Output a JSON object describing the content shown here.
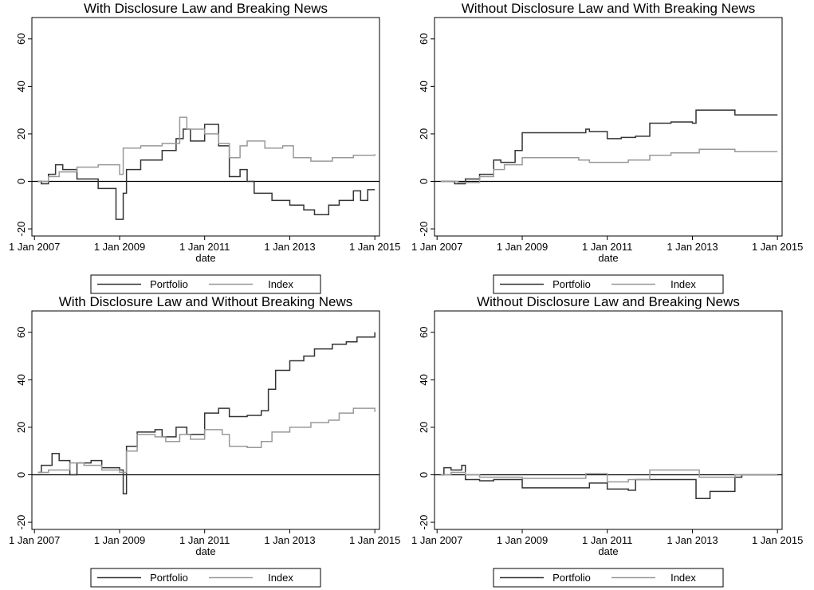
{
  "chart_data": [
    {
      "type": "line",
      "step": true,
      "title": "With Disclosure Law and Breaking News",
      "xlabel": "date",
      "xlim": [
        "2006-12-10",
        "2015-02-10"
      ],
      "ylim": [
        -23,
        69
      ],
      "yticks": [
        -20,
        0,
        20,
        40,
        60
      ],
      "reference_line": 0,
      "legend": "bottom",
      "xticks": [
        {
          "value": "2007-01-01",
          "label": "1 Jan 2007"
        },
        {
          "value": "2009-01-01",
          "label": "1 Jan 2009"
        },
        {
          "value": "2011-01-01",
          "label": "1 Jan 2011"
        },
        {
          "value": "2013-01-01",
          "label": "1 Jan 2013"
        },
        {
          "value": "2015-01-01",
          "label": "1 Jan 2015"
        }
      ],
      "series": [
        {
          "name": "Portfolio",
          "color": "#333333",
          "x": [
            "2007-02-01",
            "2007-03-01",
            "2007-05-01",
            "2007-07-01",
            "2007-09-01",
            "2008-01-01",
            "2008-07-01",
            "2008-12-01",
            "2009-02-01",
            "2009-03-01",
            "2009-07-01",
            "2010-01-01",
            "2010-05-01",
            "2010-07-01",
            "2010-09-01",
            "2011-01-01",
            "2011-05-01",
            "2011-08-01",
            "2011-11-01",
            "2012-01-01",
            "2012-03-01",
            "2012-08-01",
            "2013-01-01",
            "2013-05-01",
            "2013-08-01",
            "2013-12-01",
            "2014-03-01",
            "2014-07-01",
            "2014-09-01",
            "2014-11-01",
            "2015-01-01"
          ],
          "values": [
            0,
            -1,
            3,
            7,
            5,
            1,
            -3,
            -16,
            -5,
            5,
            9,
            13,
            18,
            22,
            17,
            24,
            15,
            2,
            5,
            0,
            -5,
            -8,
            -10,
            -12,
            -14,
            -10,
            -8,
            -4,
            -8,
            -3.5,
            -3.5
          ]
        },
        {
          "name": "Index",
          "color": "#999999",
          "x": [
            "2007-02-01",
            "2007-05-01",
            "2007-08-01",
            "2008-01-01",
            "2008-07-01",
            "2009-01-01",
            "2009-02-01",
            "2009-07-01",
            "2010-01-01",
            "2010-06-01",
            "2010-08-01",
            "2011-01-01",
            "2011-05-01",
            "2011-08-01",
            "2011-11-01",
            "2012-01-01",
            "2012-06-01",
            "2012-11-01",
            "2013-02-01",
            "2013-07-01",
            "2014-01-01",
            "2014-07-01",
            "2015-01-01"
          ],
          "values": [
            0,
            2,
            4,
            6,
            7,
            3,
            14,
            15,
            16,
            27,
            22,
            20,
            16,
            10,
            15,
            17,
            14,
            15,
            10,
            8.5,
            10,
            11,
            11.5
          ]
        }
      ]
    },
    {
      "type": "line",
      "step": true,
      "title": "Without Disclosure Law and With Breaking News",
      "xlabel": "date",
      "xlim": [
        "2006-12-10",
        "2015-02-10"
      ],
      "ylim": [
        -23,
        69
      ],
      "yticks": [
        -20,
        0,
        20,
        40,
        60
      ],
      "reference_line": 0,
      "legend": "bottom",
      "xticks": [
        {
          "value": "2007-01-01",
          "label": "1 Jan 2007"
        },
        {
          "value": "2009-01-01",
          "label": "1 Jan 2009"
        },
        {
          "value": "2011-01-01",
          "label": "1 Jan 2011"
        },
        {
          "value": "2013-01-01",
          "label": "1 Jan 2013"
        },
        {
          "value": "2015-01-01",
          "label": "1 Jan 2015"
        }
      ],
      "series": [
        {
          "name": "Portfolio",
          "color": "#333333",
          "x": [
            "2007-02-01",
            "2007-06-01",
            "2007-09-01",
            "2008-01-01",
            "2008-05-01",
            "2008-07-01",
            "2008-11-01",
            "2009-01-01",
            "2010-07-01",
            "2010-08-01",
            "2011-01-01",
            "2011-05-01",
            "2011-09-01",
            "2012-01-01",
            "2012-07-01",
            "2013-01-01",
            "2013-02-01",
            "2013-09-01",
            "2014-01-01",
            "2015-01-01"
          ],
          "values": [
            0,
            -1,
            1,
            3,
            9,
            8,
            13,
            20.5,
            22,
            21,
            18,
            18.5,
            19,
            24.5,
            25,
            24.5,
            30,
            30,
            28,
            28
          ]
        },
        {
          "name": "Index",
          "color": "#999999",
          "x": [
            "2007-02-01",
            "2007-07-01",
            "2008-01-01",
            "2008-05-01",
            "2008-08-01",
            "2009-01-01",
            "2009-07-01",
            "2010-05-01",
            "2010-08-01",
            "2011-01-01",
            "2011-07-01",
            "2012-01-01",
            "2012-07-01",
            "2012-12-01",
            "2013-03-01",
            "2014-01-01",
            "2015-01-01"
          ],
          "values": [
            0,
            -0.5,
            2,
            5,
            7,
            10,
            10,
            9,
            8,
            8,
            9,
            11,
            12,
            12,
            13.5,
            12.5,
            12.5
          ]
        }
      ]
    },
    {
      "type": "line",
      "step": true,
      "title": "With Disclosure Law and Without Breaking News",
      "xlabel": "date",
      "xlim": [
        "2006-12-10",
        "2015-02-10"
      ],
      "ylim": [
        -23,
        69
      ],
      "yticks": [
        -20,
        0,
        20,
        40,
        60
      ],
      "reference_line": 0,
      "legend": "bottom",
      "xticks": [
        {
          "value": "2007-01-01",
          "label": "1 Jan 2007"
        },
        {
          "value": "2009-01-01",
          "label": "1 Jan 2009"
        },
        {
          "value": "2011-01-01",
          "label": "1 Jan 2011"
        },
        {
          "value": "2013-01-01",
          "label": "1 Jan 2013"
        },
        {
          "value": "2015-01-01",
          "label": "1 Jan 2015"
        }
      ],
      "series": [
        {
          "name": "Portfolio",
          "color": "#333333",
          "x": [
            "2007-02-01",
            "2007-03-01",
            "2007-06-01",
            "2007-08-01",
            "2007-11-01",
            "2008-01-01",
            "2008-05-01",
            "2008-08-01",
            "2009-01-01",
            "2009-02-01",
            "2009-03-01",
            "2009-06-01",
            "2009-11-01",
            "2010-01-01",
            "2010-05-01",
            "2010-08-01",
            "2011-01-01",
            "2011-05-01",
            "2011-08-01",
            "2012-01-01",
            "2012-05-01",
            "2012-07-01",
            "2012-09-01",
            "2013-01-01",
            "2013-05-01",
            "2013-08-01",
            "2014-01-01",
            "2014-05-01",
            "2014-08-01",
            "2015-01-01"
          ],
          "values": [
            1,
            4,
            9,
            6,
            0,
            5,
            6,
            3,
            2,
            -8,
            12,
            18,
            19,
            16,
            20,
            17,
            26,
            28,
            24.5,
            25,
            27,
            36,
            44,
            48,
            50,
            53,
            55,
            56,
            58,
            60
          ]
        },
        {
          "name": "Index",
          "color": "#999999",
          "x": [
            "2007-02-01",
            "2007-05-01",
            "2007-08-01",
            "2007-11-01",
            "2008-03-01",
            "2008-08-01",
            "2009-01-01",
            "2009-03-01",
            "2009-06-01",
            "2009-11-01",
            "2010-02-01",
            "2010-06-01",
            "2010-09-01",
            "2011-01-01",
            "2011-06-01",
            "2011-08-01",
            "2012-01-01",
            "2012-05-01",
            "2012-08-01",
            "2013-01-01",
            "2013-07-01",
            "2013-12-01",
            "2014-03-01",
            "2014-07-01",
            "2014-11-01",
            "2015-01-01"
          ],
          "values": [
            1,
            2,
            2,
            5,
            4,
            2,
            1,
            10,
            17,
            16,
            14,
            17,
            15,
            19,
            17,
            12,
            11.5,
            14,
            18,
            20,
            22,
            23,
            26,
            28,
            28,
            26.5
          ]
        }
      ]
    },
    {
      "type": "line",
      "step": true,
      "title": "Without Disclosure Law and Breaking News",
      "xlabel": "date",
      "xlim": [
        "2006-12-10",
        "2015-02-10"
      ],
      "ylim": [
        -23,
        69
      ],
      "yticks": [
        -20,
        0,
        20,
        40,
        60
      ],
      "reference_line": 0,
      "legend": "bottom",
      "xticks": [
        {
          "value": "2007-01-01",
          "label": "1 Jan 2007"
        },
        {
          "value": "2009-01-01",
          "label": "1 Jan 2009"
        },
        {
          "value": "2011-01-01",
          "label": "1 Jan 2011"
        },
        {
          "value": "2013-01-01",
          "label": "1 Jan 2013"
        },
        {
          "value": "2015-01-01",
          "label": "1 Jan 2015"
        }
      ],
      "series": [
        {
          "name": "Portfolio",
          "color": "#333333",
          "x": [
            "2007-02-01",
            "2007-03-01",
            "2007-05-01",
            "2007-08-01",
            "2007-09-01",
            "2008-01-01",
            "2008-05-01",
            "2009-01-01",
            "2010-08-01",
            "2011-01-01",
            "2011-07-01",
            "2011-09-01",
            "2013-01-01",
            "2013-02-01",
            "2013-06-01",
            "2014-01-01",
            "2014-03-01",
            "2015-01-01"
          ],
          "values": [
            0,
            3,
            2,
            4,
            -2,
            -2.5,
            -2,
            -5.5,
            -3.5,
            -6,
            -6.5,
            -2,
            -2,
            -10,
            -7,
            -1,
            0,
            0
          ]
        },
        {
          "name": "Index",
          "color": "#999999",
          "x": [
            "2007-02-01",
            "2007-05-01",
            "2007-09-01",
            "2008-01-01",
            "2009-01-01",
            "2010-07-01",
            "2011-01-01",
            "2011-07-01",
            "2012-01-01",
            "2013-01-01",
            "2013-03-01",
            "2014-01-01",
            "2015-01-01"
          ],
          "values": [
            0,
            1,
            0,
            -1,
            -1.5,
            0.5,
            -3,
            -2,
            2,
            2,
            -1,
            0,
            0
          ]
        }
      ]
    }
  ]
}
